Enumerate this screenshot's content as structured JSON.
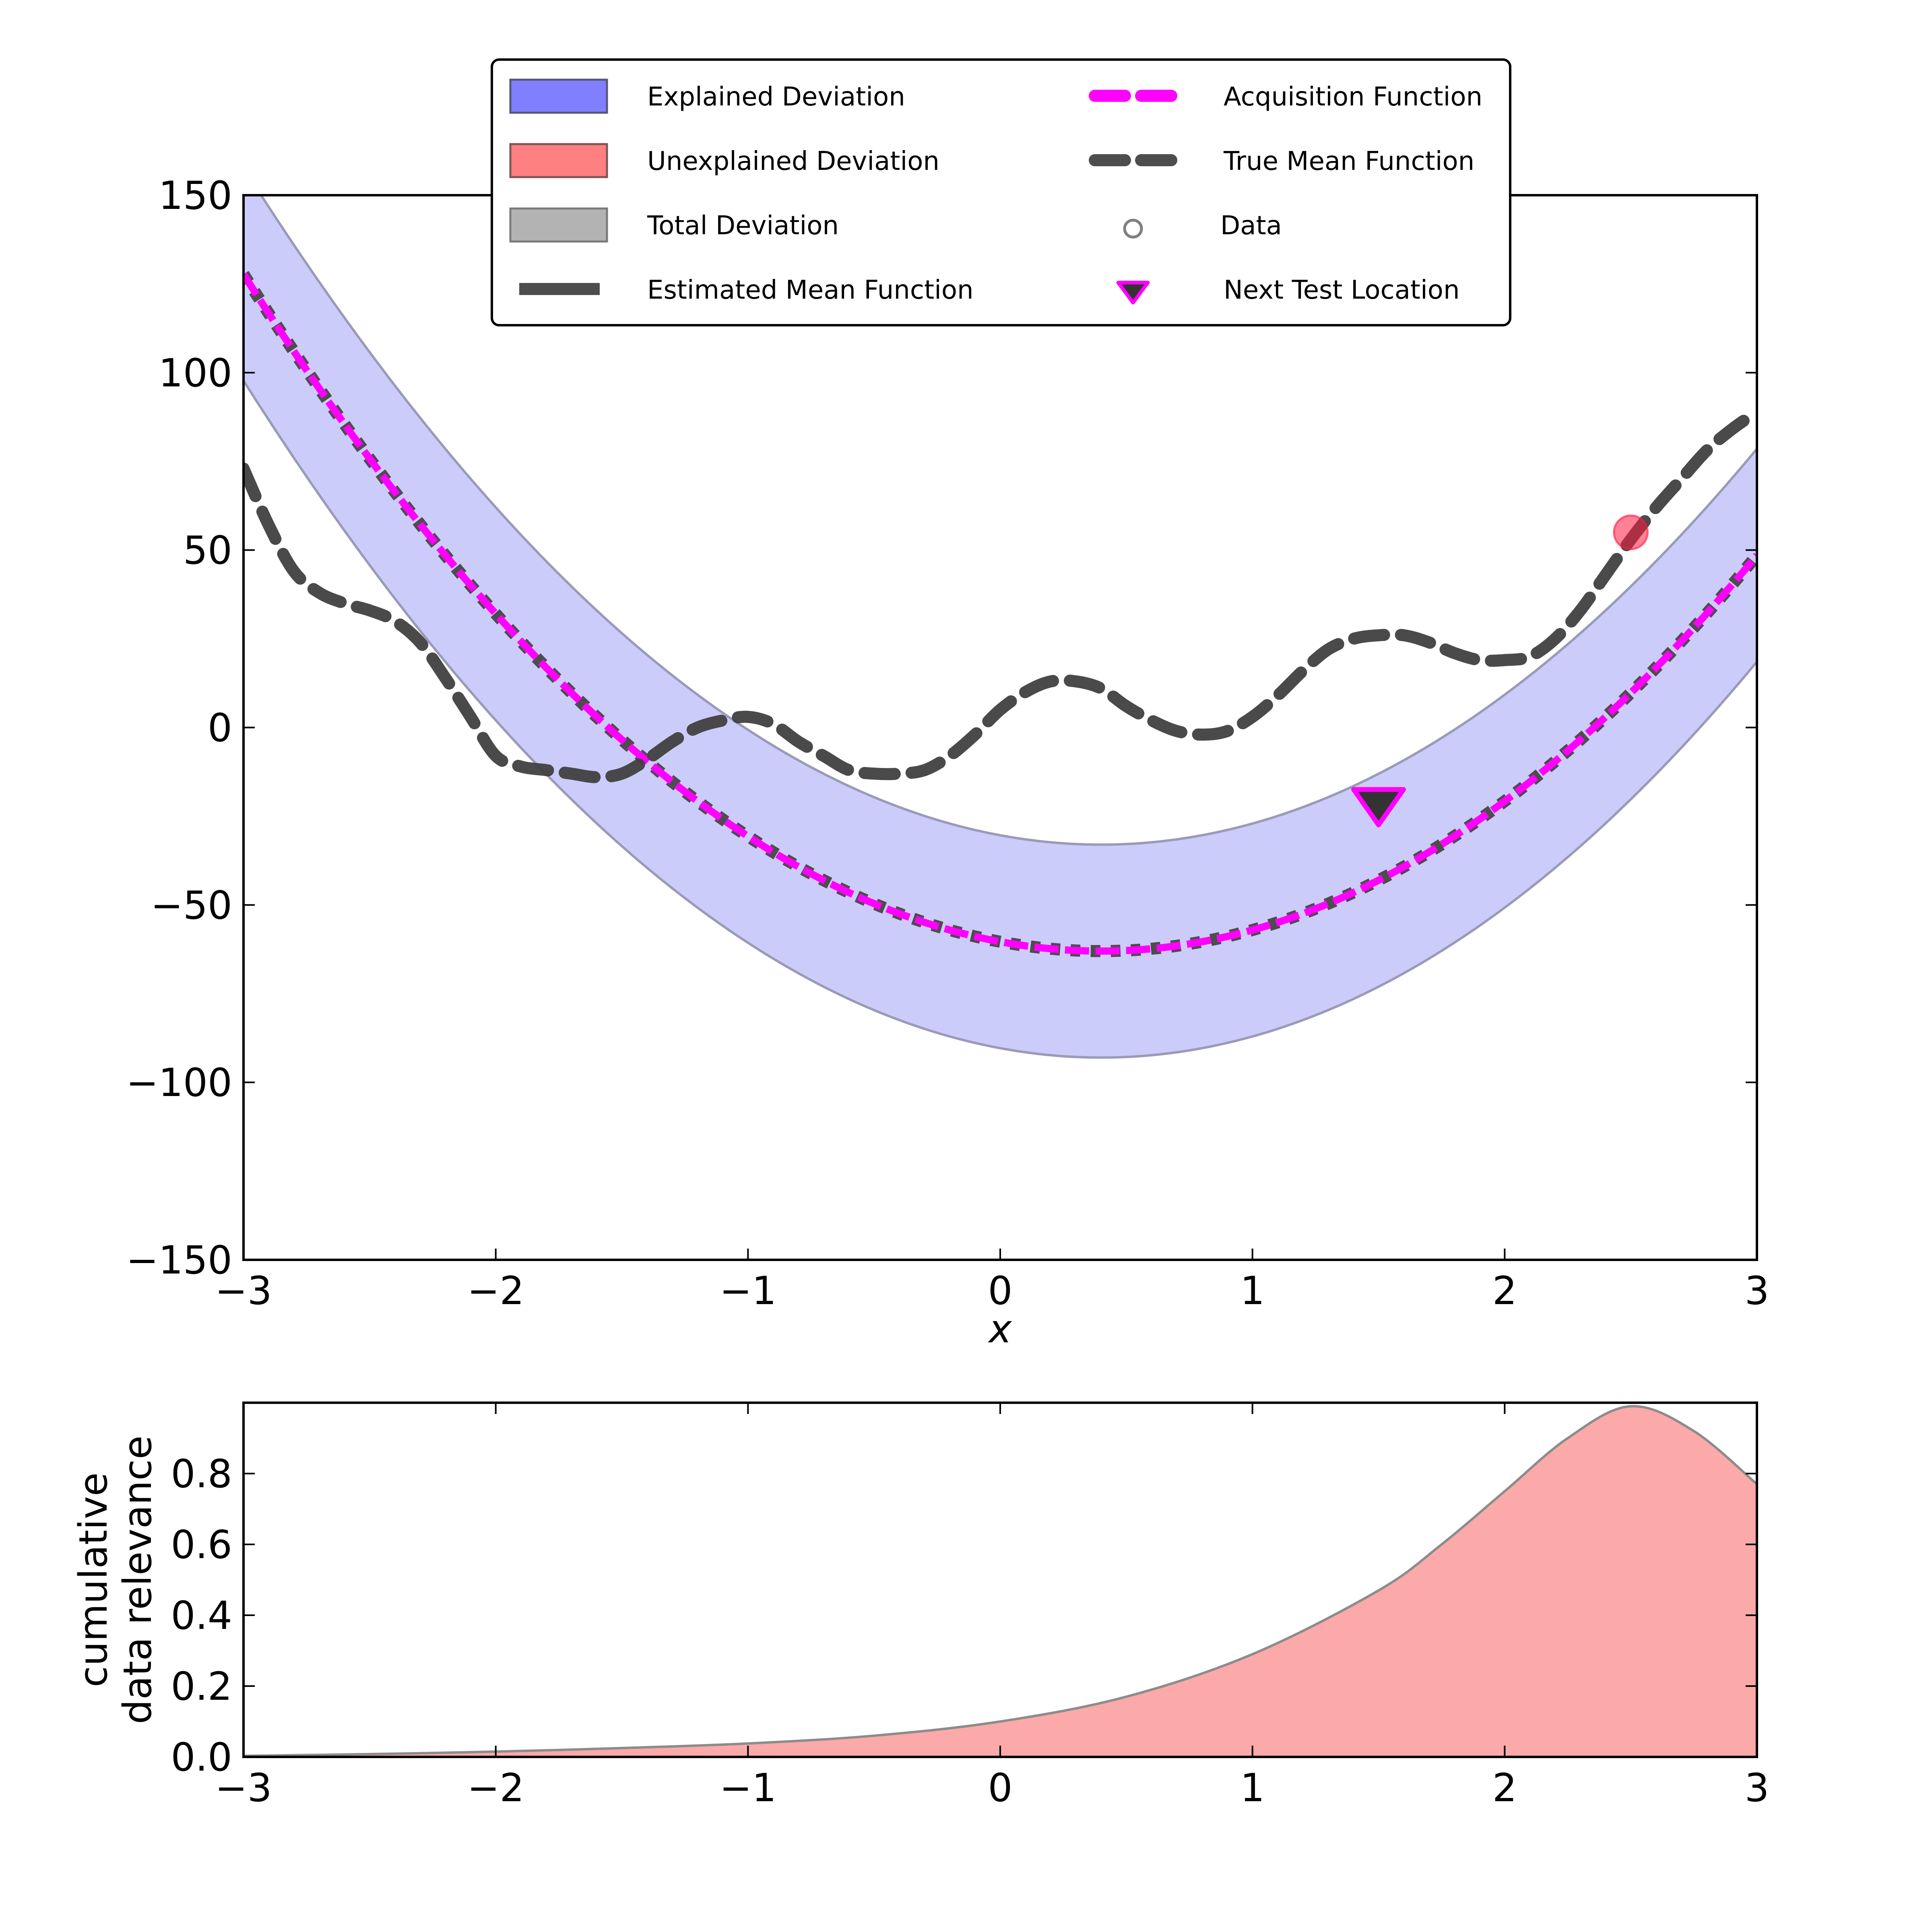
{
  "chart_data": [
    {
      "type": "line",
      "xlabel": "x",
      "ylabel": "",
      "xlim": [
        -3,
        3
      ],
      "ylim": [
        -150,
        150
      ],
      "xticks": [
        -3,
        -2,
        -1,
        0,
        1,
        2,
        3
      ],
      "yticks": [
        -150,
        -100,
        -50,
        0,
        50,
        100,
        150
      ],
      "xtick_labels": [
        "−3",
        "−2",
        "−1",
        "0",
        "1",
        "2",
        "3"
      ],
      "ytick_labels": [
        "−150",
        "−100",
        "−50",
        "0",
        "50",
        "100",
        "150"
      ],
      "grid": false,
      "legend_placement": "top-center",
      "legend": [
        {
          "label": "Explained Deviation",
          "kind": "patch",
          "color": "#8080ff"
        },
        {
          "label": "Unexplained Deviation",
          "kind": "patch",
          "color": "#ff8080"
        },
        {
          "label": "Total Deviation",
          "kind": "patch",
          "color": "#b3b3b3"
        },
        {
          "label": "Estimated Mean Function",
          "kind": "line",
          "color": "#4d4d4d"
        },
        {
          "label": "Acquisition Function",
          "kind": "dashed-line",
          "color": "#ff00ff"
        },
        {
          "label": "True Mean Function",
          "kind": "dashed-line",
          "color": "#4d4d4d"
        },
        {
          "label": "Data",
          "kind": "marker-circle",
          "color": "#808080"
        },
        {
          "label": "Next Test Location",
          "kind": "marker-triangle",
          "color": "#333333"
        }
      ],
      "colors": {
        "explained_band": "#ccccfa",
        "band_edge": "#9a9ab8",
        "estimated_mean": "#4d4d4d",
        "acquisition": "#ff00ff",
        "true_mean": "#404040",
        "data_point": "#ff1a40",
        "next_test_marker": "#333333",
        "next_test_edge": "#ff00ff"
      },
      "mean_model": {
        "a": 16.5,
        "h": 0.4,
        "k": -63
      },
      "band_half_width": 30,
      "true_mean": {
        "x": [
          -3.0,
          -2.9,
          -2.8,
          -2.7,
          -2.6,
          -2.5,
          -2.4,
          -2.3,
          -2.2,
          -2.1,
          -2.0,
          -1.9,
          -1.8,
          -1.7,
          -1.6,
          -1.5,
          -1.4,
          -1.3,
          -1.2,
          -1.1,
          -1.0,
          -0.9,
          -0.8,
          -0.7,
          -0.6,
          -0.5,
          -0.4,
          -0.3,
          -0.2,
          -0.1,
          0.0,
          0.1,
          0.2,
          0.3,
          0.4,
          0.5,
          0.6,
          0.7,
          0.8,
          0.9,
          1.0,
          1.1,
          1.2,
          1.3,
          1.4,
          1.5,
          1.6,
          1.7,
          1.8,
          1.9,
          2.0,
          2.1,
          2.2,
          2.3,
          2.4,
          2.5,
          2.6,
          2.7,
          2.8,
          2.9,
          3.0
        ],
        "y": [
          73,
          57,
          44,
          38,
          35,
          33,
          30,
          24,
          14,
          3,
          -8,
          -11,
          -12,
          -13,
          -14,
          -13,
          -9,
          -4,
          0,
          2,
          3,
          1,
          -4,
          -8,
          -12,
          -13,
          -13,
          -12,
          -8,
          -2,
          5,
          10,
          13,
          13,
          11,
          6,
          2,
          -1,
          -2,
          -1,
          3,
          9,
          16,
          22,
          25,
          26,
          26,
          24,
          21,
          19,
          19,
          20,
          25,
          33,
          43,
          53,
          62,
          70,
          78,
          84,
          89
        ]
      },
      "data_points": [
        {
          "x": 2.5,
          "y": 55
        }
      ],
      "next_test_location": {
        "x": 1.5,
        "y": -22
      }
    },
    {
      "type": "area",
      "xlabel": "",
      "ylabel": "cumulative\ndata relevance",
      "ylabel_lines": [
        "cumulative",
        "data relevance"
      ],
      "xlim": [
        -3,
        3
      ],
      "ylim": [
        0,
        1.0
      ],
      "xticks": [
        -3,
        -2,
        -1,
        0,
        1,
        2,
        3
      ],
      "yticks": [
        0.0,
        0.2,
        0.4,
        0.6,
        0.8
      ],
      "xtick_labels": [
        "−3",
        "−2",
        "−1",
        "0",
        "1",
        "2",
        "3"
      ],
      "ytick_labels": [
        "0.0",
        "0.2",
        "0.4",
        "0.6",
        "0.8"
      ],
      "grid": false,
      "colors": {
        "fill": "#fca9a9",
        "edge": "#8c8c8c"
      },
      "x": [
        -3.0,
        -2.5,
        -2.0,
        -1.5,
        -1.0,
        -0.5,
        0.0,
        0.5,
        1.0,
        1.5,
        1.75,
        2.0,
        2.25,
        2.5,
        2.75,
        3.0
      ],
      "y": [
        0.003,
        0.008,
        0.015,
        0.025,
        0.038,
        0.06,
        0.1,
        0.17,
        0.29,
        0.47,
        0.6,
        0.75,
        0.9,
        0.99,
        0.92,
        0.77
      ]
    }
  ]
}
